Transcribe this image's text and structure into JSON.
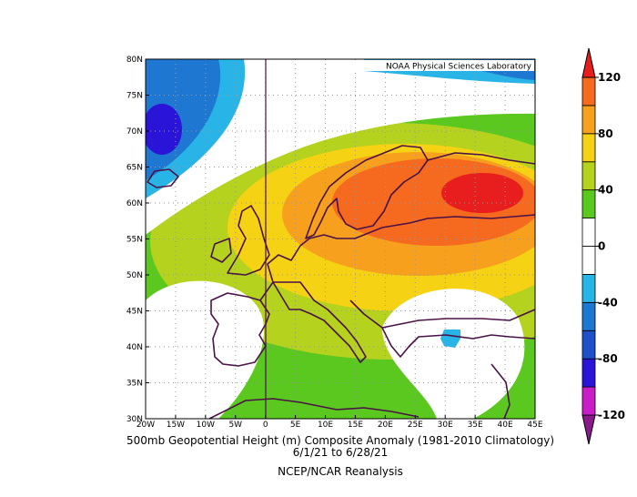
{
  "chart_data": {
    "type": "contour-map",
    "title_lines": [
      "500mb Geopotential Height (m) Composite Anomaly (1981-2010 Climatology)",
      "6/1/21  to 6/28/21",
      "NCEP/NCAR Reanalysis"
    ],
    "credit": "NOAA Physical Sciences Laboratory",
    "xlim": [
      -20,
      45
    ],
    "ylim": [
      30,
      80
    ],
    "xticks": [
      {
        "value": -20,
        "label": "20W"
      },
      {
        "value": -15,
        "label": "15W"
      },
      {
        "value": -10,
        "label": "10W"
      },
      {
        "value": -5,
        "label": "5W"
      },
      0,
      {
        "value": 5,
        "label": "5E"
      },
      {
        "value": 10,
        "label": "10E"
      },
      {
        "value": 15,
        "label": "15E"
      },
      {
        "value": 20,
        "label": "20E"
      },
      {
        "value": 25,
        "label": "25E"
      },
      {
        "value": 30,
        "label": "30E"
      },
      {
        "value": 35,
        "label": "35E"
      },
      {
        "value": 40,
        "label": "40E"
      },
      {
        "value": 45,
        "label": "45E"
      }
    ],
    "yticks": [
      {
        "value": 30,
        "label": "30N"
      },
      {
        "value": 35,
        "label": "35N"
      },
      {
        "value": 40,
        "label": "40N"
      },
      {
        "value": 45,
        "label": "45N"
      },
      {
        "value": 50,
        "label": "50N"
      },
      {
        "value": 55,
        "label": "55N"
      },
      {
        "value": 60,
        "label": "60N"
      },
      {
        "value": 65,
        "label": "65N"
      },
      {
        "value": 70,
        "label": "70N"
      },
      {
        "value": 75,
        "label": "75N"
      },
      {
        "value": 80,
        "label": "80N"
      }
    ],
    "grid": true,
    "colorbar": {
      "levels": [
        -120,
        -100,
        -80,
        -60,
        -40,
        -20,
        0,
        20,
        40,
        60,
        80,
        100,
        120
      ],
      "colors": [
        "#8a1a8c",
        "#c81ec8",
        "#2a14d8",
        "#1e50c8",
        "#1e78d2",
        "#28b4e6",
        "#ffffff",
        "#ffffff",
        "#5ac81e",
        "#b4d21e",
        "#f5d214",
        "#f7a01e",
        "#f56a1e",
        "#e81e1e"
      ],
      "ticks": [
        120,
        80,
        40,
        0,
        -40,
        -80,
        -120
      ]
    }
  }
}
